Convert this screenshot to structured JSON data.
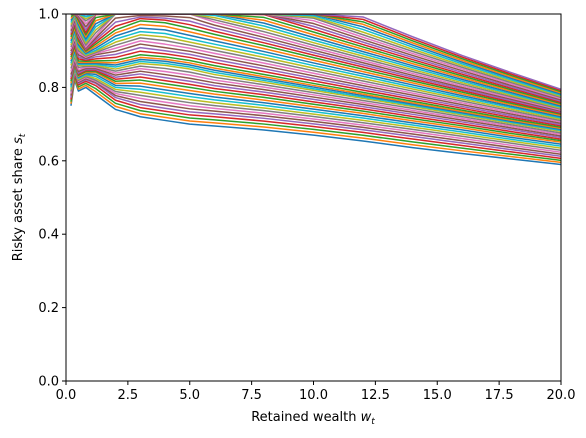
{
  "chart_data": {
    "type": "line",
    "xlabel": "Retained wealth",
    "xlabel_sub": "t",
    "ylabel": "Risky asset share",
    "ylabel_sub": "t",
    "xlim": [
      0,
      20
    ],
    "ylim": [
      0,
      1.0
    ],
    "grid": false,
    "legend": "none",
    "x_ticks": [
      0,
      2.5,
      5,
      7.5,
      10,
      12.5,
      15,
      17.5,
      20
    ],
    "x_tick_labels": [
      "0.0",
      "2.5",
      "5.0",
      "7.5",
      "10.0",
      "12.5",
      "15.0",
      "17.5",
      "20.0"
    ],
    "y_ticks": [
      0,
      0.2,
      0.4,
      0.6,
      0.8,
      1.0
    ],
    "y_tick_labels": [
      "0.0",
      "0.2",
      "0.4",
      "0.6",
      "0.8",
      "1.0"
    ],
    "palette": [
      "#1f77b4",
      "#ff7f0e",
      "#2ca02c",
      "#d62728",
      "#9467bd",
      "#8c564b",
      "#e377c2",
      "#7f7f7f",
      "#bcbd22",
      "#17becf"
    ],
    "series_count": 55,
    "x": [
      0.2,
      0.35,
      0.5,
      0.8,
      1.2,
      2,
      3,
      4,
      5,
      6,
      8,
      10,
      12,
      14,
      16,
      18,
      20
    ],
    "series": [
      {
        "values": [
          0.75,
          0.82,
          0.79,
          0.8,
          0.78,
          0.74,
          0.72,
          0.71,
          0.7,
          0.695,
          0.684,
          0.67,
          0.654,
          0.636,
          0.62,
          0.605,
          0.59
        ]
      },
      {
        "values": [
          0.77,
          0.84,
          0.81,
          0.82,
          0.81,
          0.77,
          0.75,
          0.74,
          0.73,
          0.725,
          0.713,
          0.698,
          0.682,
          0.664,
          0.646,
          0.628,
          0.61
        ]
      },
      {
        "values": [
          0.79,
          0.85,
          0.82,
          0.83,
          0.82,
          0.79,
          0.78,
          0.77,
          0.76,
          0.752,
          0.738,
          0.722,
          0.705,
          0.687,
          0.668,
          0.649,
          0.63
        ]
      },
      {
        "values": [
          0.81,
          0.86,
          0.83,
          0.84,
          0.84,
          0.81,
          0.81,
          0.8,
          0.79,
          0.78,
          0.764,
          0.746,
          0.728,
          0.708,
          0.689,
          0.668,
          0.65
        ]
      },
      {
        "values": [
          0.83,
          0.87,
          0.84,
          0.85,
          0.85,
          0.83,
          0.84,
          0.83,
          0.82,
          0.808,
          0.79,
          0.77,
          0.75,
          0.729,
          0.708,
          0.687,
          0.665
        ]
      },
      {
        "values": [
          0.86,
          0.89,
          0.86,
          0.86,
          0.86,
          0.85,
          0.865,
          0.86,
          0.85,
          0.835,
          0.814,
          0.792,
          0.77,
          0.748,
          0.725,
          0.702,
          0.68
        ]
      },
      {
        "values": [
          0.88,
          0.91,
          0.87,
          0.87,
          0.87,
          0.87,
          0.885,
          0.88,
          0.87,
          0.856,
          0.832,
          0.808,
          0.784,
          0.76,
          0.736,
          0.712,
          0.69
        ]
      },
      {
        "values": [
          0.9,
          0.93,
          0.89,
          0.88,
          0.89,
          0.9,
          0.92,
          0.91,
          0.9,
          0.886,
          0.86,
          0.833,
          0.806,
          0.78,
          0.754,
          0.728,
          0.703
        ]
      },
      {
        "values": [
          0.92,
          0.95,
          0.91,
          0.89,
          0.9,
          0.93,
          0.95,
          0.945,
          0.93,
          0.916,
          0.888,
          0.858,
          0.829,
          0.8,
          0.772,
          0.744,
          0.716
        ]
      },
      {
        "values": [
          0.94,
          0.97,
          0.93,
          0.9,
          0.92,
          0.96,
          0.985,
          0.98,
          0.965,
          0.948,
          0.917,
          0.884,
          0.852,
          0.82,
          0.789,
          0.758,
          0.728
        ]
      },
      {
        "values": [
          0.96,
          0.99,
          0.95,
          0.91,
          0.94,
          1.0,
          1.0,
          1.0,
          1.0,
          0.978,
          0.944,
          0.908,
          0.873,
          0.838,
          0.804,
          0.771,
          0.738
        ]
      },
      {
        "values": [
          0.98,
          1.0,
          0.97,
          0.93,
          0.97,
          1.0,
          1.0,
          1.0,
          1.0,
          1.0,
          0.972,
          0.933,
          0.895,
          0.857,
          0.82,
          0.784,
          0.748
        ]
      },
      {
        "values": [
          1.0,
          1.0,
          0.99,
          0.95,
          1.0,
          1.0,
          1.0,
          1.0,
          1.0,
          1.0,
          1.0,
          0.96,
          0.918,
          0.877,
          0.837,
          0.798,
          0.76
        ]
      },
      {
        "values": [
          1.0,
          1.0,
          1.0,
          0.98,
          1.0,
          1.0,
          1.0,
          1.0,
          1.0,
          1.0,
          1.0,
          0.988,
          0.942,
          0.897,
          0.854,
          0.812,
          0.772
        ]
      },
      {
        "values": [
          1.0,
          1.0,
          1.0,
          1.0,
          1.0,
          1.0,
          1.0,
          1.0,
          1.0,
          1.0,
          1.0,
          1.0,
          0.968,
          0.918,
          0.871,
          0.826,
          0.783
        ]
      },
      {
        "values": [
          1.0,
          1.0,
          1.0,
          1.0,
          1.0,
          1.0,
          1.0,
          1.0,
          1.0,
          1.0,
          1.0,
          1.0,
          0.992,
          0.938,
          0.887,
          0.84,
          0.795
        ]
      }
    ]
  }
}
